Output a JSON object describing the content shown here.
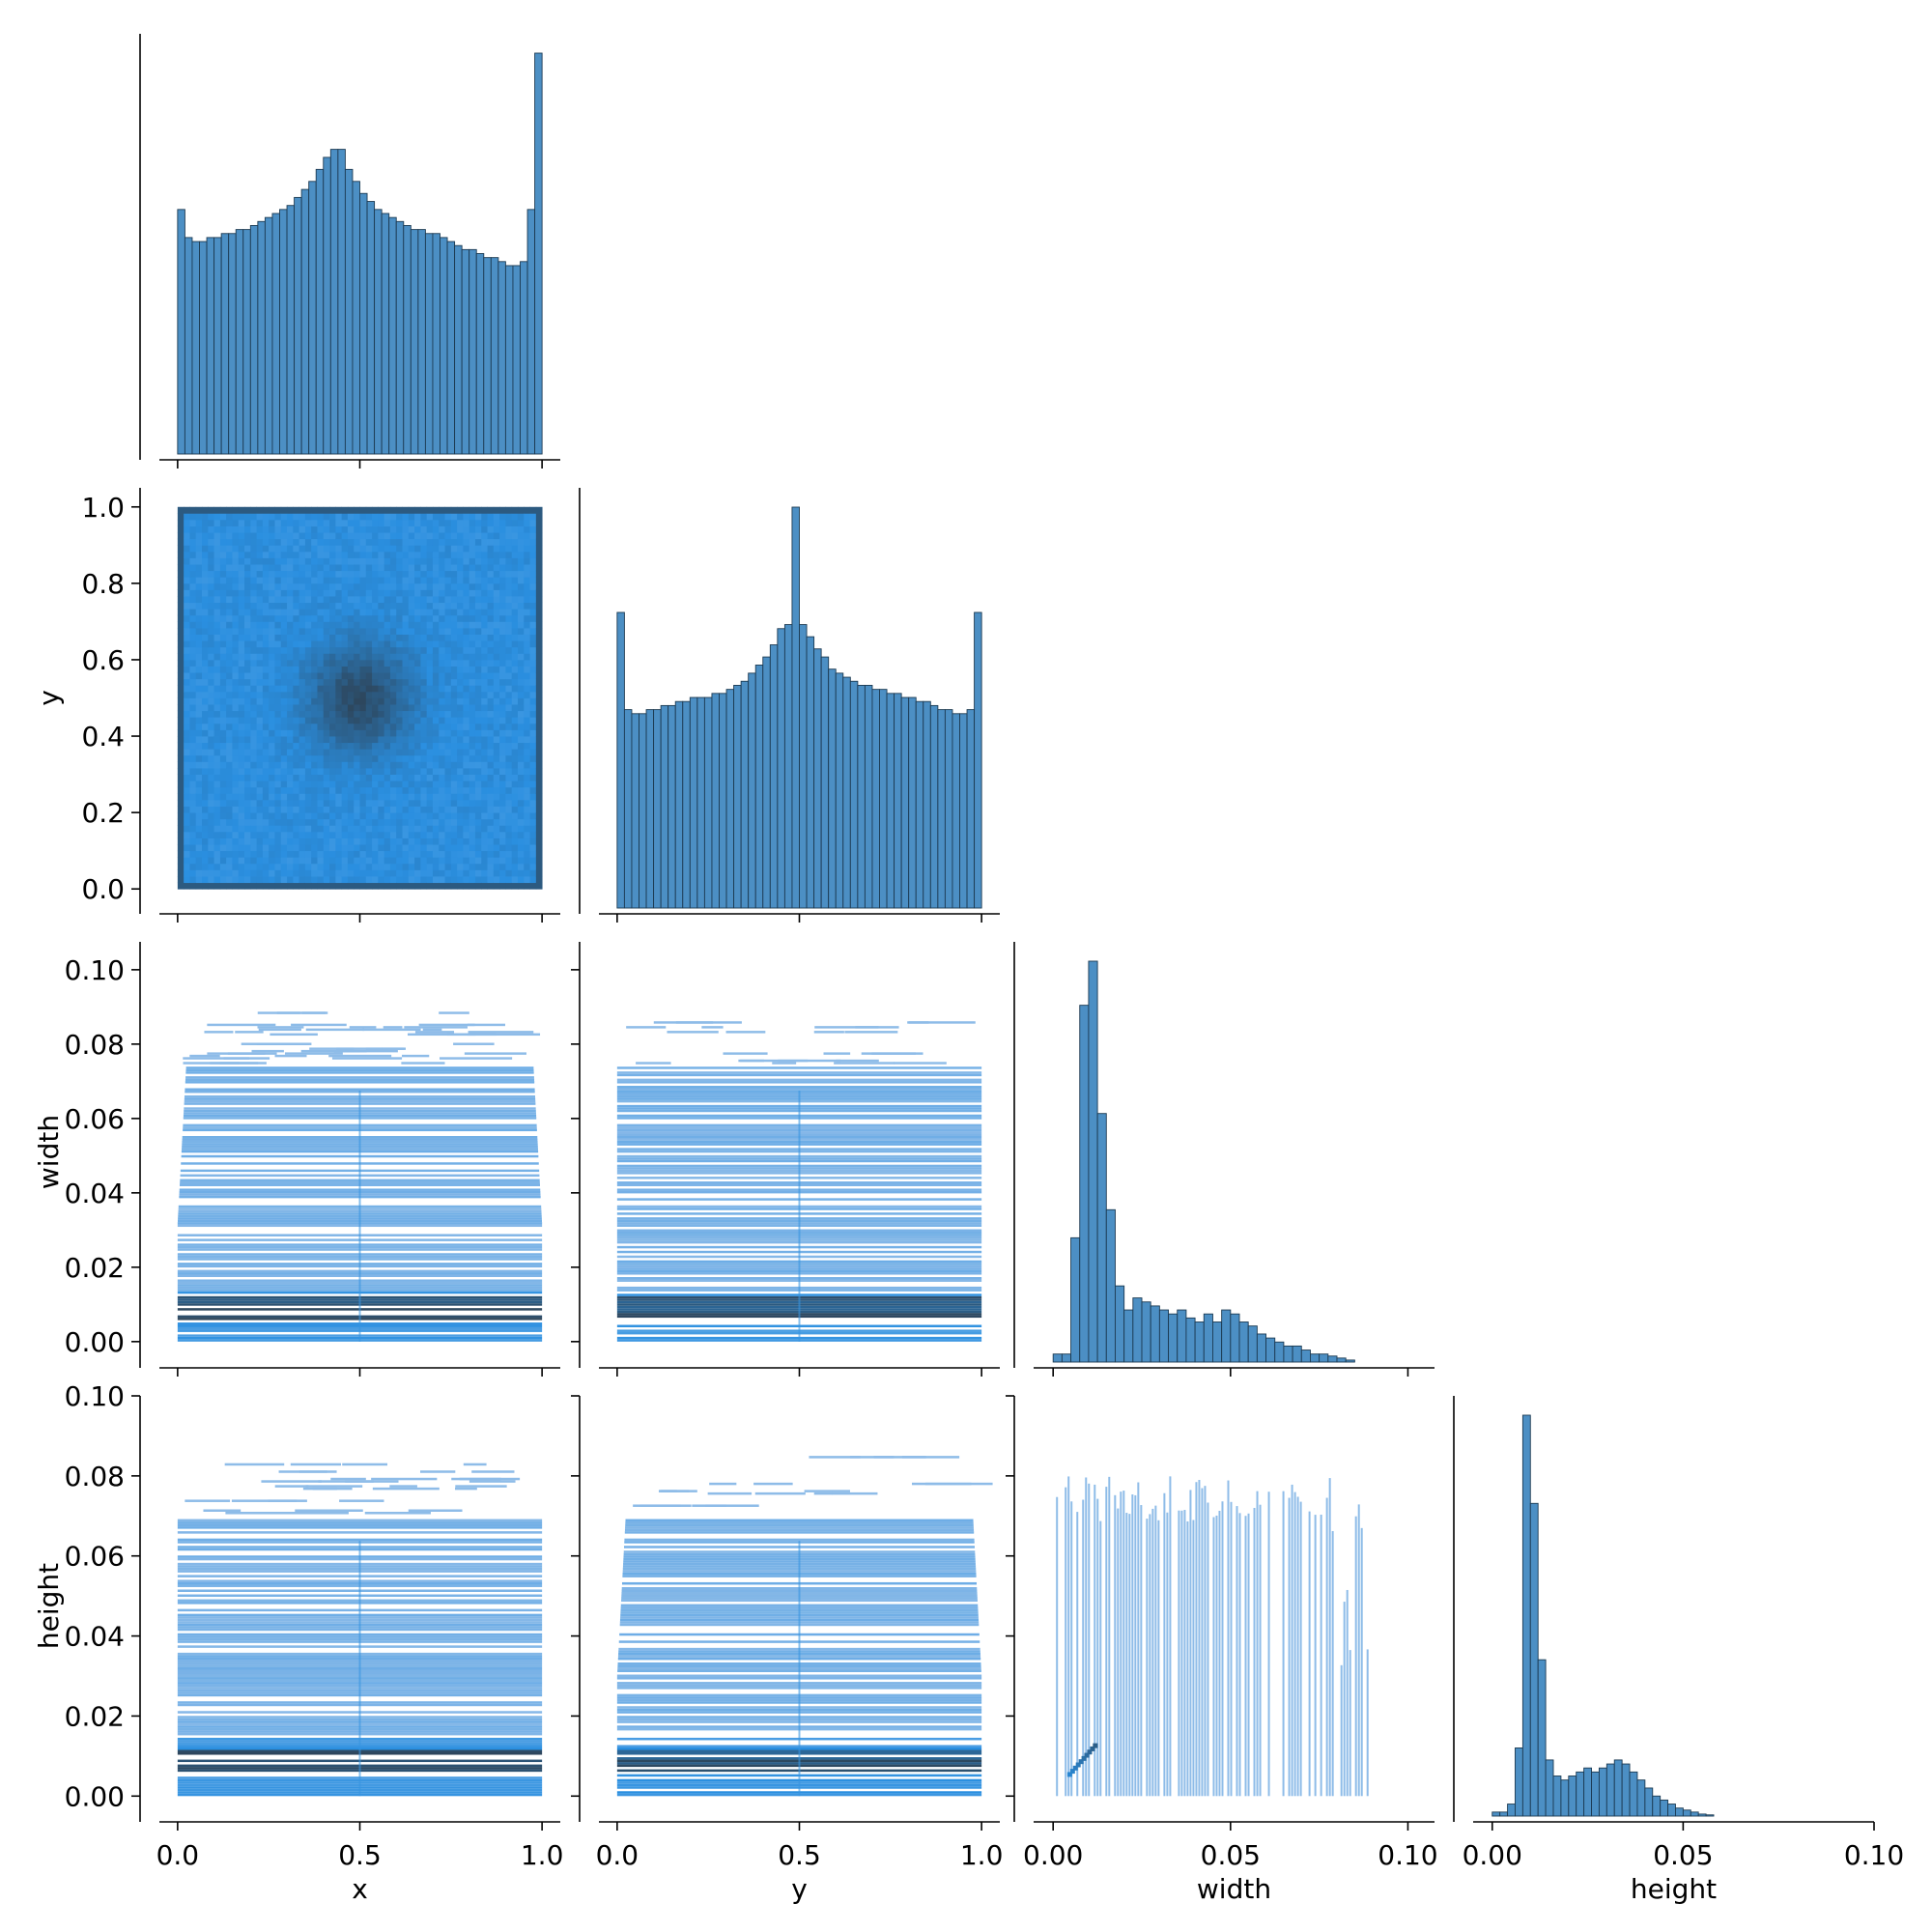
{
  "colors": {
    "bar_fill": "#4c8fc4",
    "bar_edge": "#1c3a52",
    "heat_low": "#aecaeb",
    "heat_mid": "#2a8fe0",
    "heat_high": "#2d4357",
    "axis": "#000000"
  },
  "chart_data": {
    "type": "pairplot",
    "layout": "corner",
    "variables": [
      "x",
      "y",
      "width",
      "height"
    ],
    "axis_labels": {
      "x": "x",
      "y": "y",
      "width": "width",
      "height": "height"
    },
    "ranges": {
      "x": [
        -0.05,
        1.05
      ],
      "y": [
        -0.05,
        1.05
      ],
      "width": [
        -0.0055,
        0.1075
      ],
      "height": [
        -0.005,
        0.1
      ]
    },
    "x_ticks": {
      "x": [
        "0.0",
        "0.5",
        "1.0"
      ],
      "y": [
        "0.0",
        "0.5",
        "1.0"
      ],
      "width": [
        "0.00",
        "0.05",
        "0.10"
      ],
      "height": [
        "0.00",
        "0.05",
        "0.10"
      ]
    },
    "y_ticks": {
      "y": [
        "0.0",
        "0.2",
        "0.4",
        "0.6",
        "0.8",
        "1.0"
      ],
      "width": [
        "0.00",
        "0.02",
        "0.04",
        "0.06",
        "0.08",
        "0.10"
      ],
      "height": [
        "0.00",
        "0.02",
        "0.04",
        "0.06",
        "0.08",
        "0.10"
      ]
    },
    "histograms": {
      "x": {
        "bin_start": 0.0,
        "bin_width": 0.02,
        "counts": [
          61,
          54,
          53,
          53,
          54,
          54,
          55,
          55,
          56,
          56,
          57,
          58,
          59,
          60,
          61,
          62,
          64,
          66,
          68,
          71,
          74,
          76,
          76,
          71,
          68,
          65,
          63,
          61,
          60,
          59,
          58,
          57,
          56,
          56,
          55,
          55,
          54,
          53,
          52,
          51,
          51,
          50,
          49,
          49,
          48,
          47,
          47,
          48,
          61,
          100
        ]
      },
      "y": {
        "bin_start": 0.0,
        "bin_width": 0.02,
        "counts": [
          73,
          49,
          48,
          48,
          49,
          49,
          50,
          50,
          51,
          51,
          52,
          52,
          52,
          53,
          53,
          54,
          55,
          56,
          58,
          60,
          62,
          65,
          69,
          70,
          99,
          70,
          67,
          64,
          62,
          59,
          58,
          57,
          56,
          55,
          55,
          54,
          54,
          53,
          53,
          52,
          52,
          51,
          51,
          50,
          49,
          49,
          48,
          48,
          49,
          73
        ]
      },
      "width": {
        "bin_start": 0.0,
        "bin_width": 0.0025,
        "counts": [
          2,
          2,
          31,
          89,
          100,
          62,
          38,
          19,
          13,
          16,
          15,
          14,
          13,
          12,
          13,
          11,
          10,
          12,
          10,
          13,
          12,
          10,
          9,
          7,
          6,
          5,
          4,
          4,
          3,
          2,
          2,
          1.5,
          1,
          0.5
        ]
      },
      "height": {
        "bin_start": 0.0,
        "bin_width": 0.002,
        "counts": [
          1,
          1,
          3,
          17,
          100,
          78,
          39,
          14,
          10,
          9,
          10,
          11,
          12,
          11,
          12,
          13,
          14,
          13,
          11,
          9,
          7,
          5,
          4,
          3,
          2,
          1.5,
          1,
          0.5,
          0.3
        ]
      }
    },
    "scatter_pairs": [
      {
        "x": "x",
        "y": "y",
        "kind": "2d-histogram",
        "note_peak": [
          0.5,
          0.5
        ]
      },
      {
        "x": "x",
        "y": "width",
        "kind": "2d-histogram",
        "dense_band": [
          0.005,
          0.012
        ]
      },
      {
        "x": "y",
        "y": "width",
        "kind": "2d-histogram",
        "dense_band": [
          0.005,
          0.012
        ]
      },
      {
        "x": "x",
        "y": "height",
        "kind": "2d-histogram",
        "dense_band": [
          0.006,
          0.011
        ]
      },
      {
        "x": "y",
        "y": "height",
        "kind": "2d-histogram",
        "dense_band": [
          0.006,
          0.011
        ]
      },
      {
        "x": "width",
        "y": "height",
        "kind": "2d-histogram",
        "dense_spot": [
          0.008,
          0.008
        ]
      }
    ]
  }
}
